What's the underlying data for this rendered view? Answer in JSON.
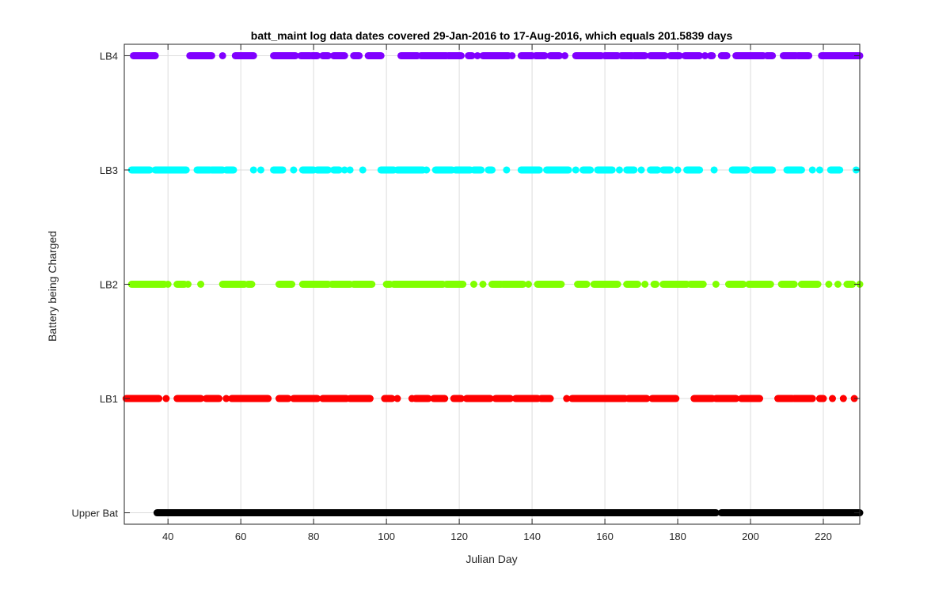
{
  "chart_data": {
    "type": "scatter",
    "title": "batt_maint log data  dates covered 29-Jan-2016 to 17-Aug-2016, which equals 201.5839 days",
    "xlabel": "Julian Day",
    "ylabel": "Battery being Charged",
    "xlim": [
      28,
      230
    ],
    "ylim": [
      0.9,
      5.1
    ],
    "xticks": [
      40,
      60,
      80,
      100,
      120,
      140,
      160,
      180,
      200,
      220
    ],
    "yticks": [
      1,
      2,
      3,
      4,
      5
    ],
    "ytick_labels": [
      "Upper Bat",
      "LB1",
      "LB2",
      "LB3",
      "LB4"
    ],
    "grid": true,
    "series": [
      {
        "category": "Upper Bat",
        "y": 1,
        "color": "#000000",
        "x": [
          [
            37,
            190.5
          ],
          [
            192,
            230
          ]
        ]
      },
      {
        "category": "LB1",
        "y": 2,
        "color": "#ff0000",
        "x": [
          [
            28.5,
            37.5
          ],
          39.5,
          [
            42.5,
            49
          ],
          [
            50.5,
            54
          ],
          56,
          [
            57.5,
            67.5
          ],
          [
            70.5,
            73
          ],
          [
            74.5,
            81
          ],
          [
            82.5,
            89
          ],
          [
            90,
            95.5
          ],
          [
            99.5,
            101.5
          ],
          103,
          107,
          [
            108,
            111.5
          ],
          [
            113,
            116
          ],
          [
            118.5,
            120.5
          ],
          [
            122,
            128.5
          ],
          [
            130,
            134
          ],
          [
            135.5,
            141.5
          ],
          [
            142.5,
            145
          ],
          149.5,
          [
            151,
            165.5
          ],
          [
            166.5,
            171.5
          ],
          [
            173,
            179.5
          ],
          [
            184.5,
            189.5
          ],
          [
            190.5,
            196
          ],
          [
            197.5,
            202.5
          ],
          [
            207.5,
            211.5
          ],
          [
            212,
            217
          ],
          [
            219,
            220
          ],
          222.5,
          225.5,
          228.5
        ]
      },
      {
        "category": "LB2",
        "y": 3,
        "color": "#80ff00",
        "x": [
          [
            30,
            39
          ],
          40,
          [
            42.5,
            44.5
          ],
          45.5,
          49,
          [
            55,
            61
          ],
          [
            62,
            63
          ],
          [
            70.5,
            74
          ],
          [
            77,
            84
          ],
          [
            85,
            90
          ],
          [
            91,
            96
          ],
          [
            100,
            101
          ],
          [
            102,
            115.5
          ],
          [
            116.5,
            121
          ],
          124,
          126.5,
          [
            129,
            131.5
          ],
          [
            132,
            137.5
          ],
          139,
          [
            141.5,
            148
          ],
          [
            152.5,
            155
          ],
          [
            157,
            163.5
          ],
          [
            166,
            169
          ],
          171,
          [
            173.5,
            174
          ],
          [
            176,
            182.5
          ],
          [
            183.5,
            187
          ],
          190.5,
          [
            194,
            198
          ],
          [
            199.5,
            205.5
          ],
          [
            208.5,
            212
          ],
          [
            214,
            218.5
          ],
          221.5,
          224,
          [
            226.5,
            228
          ],
          230
        ]
      },
      {
        "category": "LB3",
        "y": 4,
        "color": "#00ffff",
        "x": [
          [
            30,
            35
          ],
          [
            36.5,
            45
          ],
          [
            48,
            51.5
          ],
          [
            52,
            55
          ],
          [
            56,
            58
          ],
          63.5,
          65.5,
          [
            69,
            71.5
          ],
          74.5,
          [
            77,
            80
          ],
          [
            81,
            84
          ],
          [
            85.5,
            87
          ],
          88.5,
          90,
          93.5,
          [
            98.5,
            102
          ],
          [
            103,
            110
          ],
          111,
          [
            113.5,
            118
          ],
          [
            119,
            123
          ],
          [
            124,
            126
          ],
          [
            128,
            129
          ],
          133,
          [
            137,
            142
          ],
          [
            144,
            150
          ],
          152,
          [
            154,
            156
          ],
          [
            158,
            162
          ],
          164,
          [
            166,
            168
          ],
          170,
          [
            172.5,
            174.5
          ],
          [
            176,
            178
          ],
          180,
          [
            182.5,
            186
          ],
          190,
          [
            195,
            199
          ],
          [
            201,
            206
          ],
          [
            210,
            214
          ],
          217,
          219,
          [
            222,
            224.5
          ],
          229
        ]
      },
      {
        "category": "LB4",
        "y": 5,
        "color": "#8000ff",
        "x": [
          [
            30.5,
            36.5
          ],
          [
            46,
            52
          ],
          55,
          [
            58.5,
            63.5
          ],
          [
            69,
            75
          ],
          [
            76.5,
            79
          ],
          [
            79.5,
            81
          ],
          [
            82.5,
            84
          ],
          [
            85.5,
            88.5
          ],
          [
            91,
            92.5
          ],
          [
            95,
            98.5
          ],
          [
            104,
            108.5
          ],
          [
            109.5,
            116.5
          ],
          [
            117,
            120.5
          ],
          [
            122.5,
            123.5
          ],
          125,
          [
            126.5,
            133.5
          ],
          134.5,
          [
            137,
            140
          ],
          [
            141,
            143.5
          ],
          [
            145,
            147.5
          ],
          149,
          [
            152,
            159
          ],
          [
            160,
            163.5
          ],
          [
            164.5,
            167.5
          ],
          [
            168,
            171
          ],
          [
            172.5,
            176.5
          ],
          [
            178,
            180.5
          ],
          [
            182,
            186
          ],
          187.5,
          [
            189,
            189.5
          ],
          [
            192,
            193.5
          ],
          [
            196,
            203.5
          ],
          [
            204.5,
            206
          ],
          [
            209,
            212.5
          ],
          [
            213,
            216
          ],
          [
            219.5,
            230
          ]
        ]
      }
    ]
  }
}
